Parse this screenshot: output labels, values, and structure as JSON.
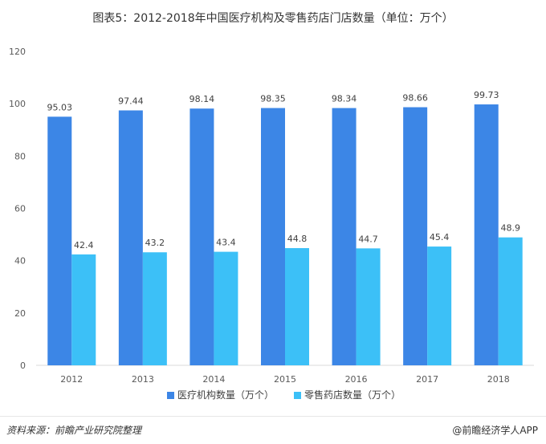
{
  "title": "图表5：2012-2018年中国医疗机构及零售药店门店数量（单位：万个）",
  "source": "资料来源：前瞻产业研究院整理",
  "brand": "@前瞻经济学人APP",
  "chart_data": {
    "type": "bar",
    "categories": [
      "2012",
      "2013",
      "2014",
      "2015",
      "2016",
      "2017",
      "2018"
    ],
    "series": [
      {
        "name": "医疗机构数量（万个）",
        "color": "#3c86e6",
        "values": [
          95.03,
          97.44,
          98.14,
          98.35,
          98.34,
          98.66,
          99.73
        ],
        "labels": [
          "95.03",
          "97.44",
          "98.14",
          "98.35",
          "98.34",
          "98.66",
          "99.73"
        ]
      },
      {
        "name": "零售药店数量（万个）",
        "color": "#3cc0f7",
        "values": [
          42.4,
          43.2,
          43.4,
          44.8,
          44.7,
          45.4,
          48.9
        ],
        "labels": [
          "42.4",
          "43.2",
          "43.4",
          "44.8",
          "44.7",
          "45.4",
          "48.9"
        ]
      }
    ],
    "ylim": [
      0,
      120
    ],
    "yticks": [
      "0",
      "20",
      "40",
      "60",
      "80",
      "100",
      "120"
    ],
    "grid": false,
    "legend_position": "bottom"
  }
}
